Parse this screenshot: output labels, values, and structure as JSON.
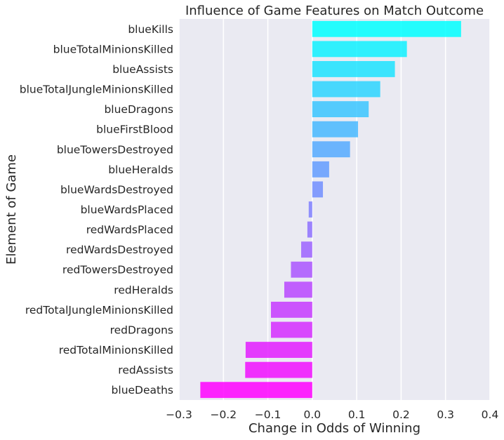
{
  "chart_data": {
    "type": "bar",
    "orientation": "horizontal",
    "title": "Influence of Game Features on Match Outcome",
    "xlabel": "Change in Odds of Winning",
    "ylabel": "Element of Game",
    "xlim": [
      -0.3,
      0.4
    ],
    "xticks": [
      "−0.3",
      "−0.2",
      "−0.1",
      "0.0",
      "0.1",
      "0.2",
      "0.3",
      "0.4"
    ],
    "grid": true,
    "background_color": "#eaeaf2",
    "color_gradient": [
      "#00ffff",
      "#ff00ff"
    ],
    "categories": [
      "blueKills",
      "blueTotalMinionsKilled",
      "blueAssists",
      "blueTotalJungleMinionsKilled",
      "blueDragons",
      "blueFirstBlood",
      "blueTowersDestroyed",
      "blueHeralds",
      "blueWardsDestroyed",
      "blueWardsPlaced",
      "redWardsPlaced",
      "redWardsDestroyed",
      "redTowersDestroyed",
      "redHeralds",
      "redTotalJungleMinionsKilled",
      "redDragons",
      "redTotalMinionsKilled",
      "redAssists",
      "blueDeaths"
    ],
    "values": [
      0.335,
      0.213,
      0.186,
      0.153,
      0.127,
      0.103,
      0.085,
      0.038,
      0.024,
      -0.008,
      -0.011,
      -0.025,
      -0.048,
      -0.063,
      -0.093,
      -0.093,
      -0.15,
      -0.151,
      -0.252
    ]
  }
}
